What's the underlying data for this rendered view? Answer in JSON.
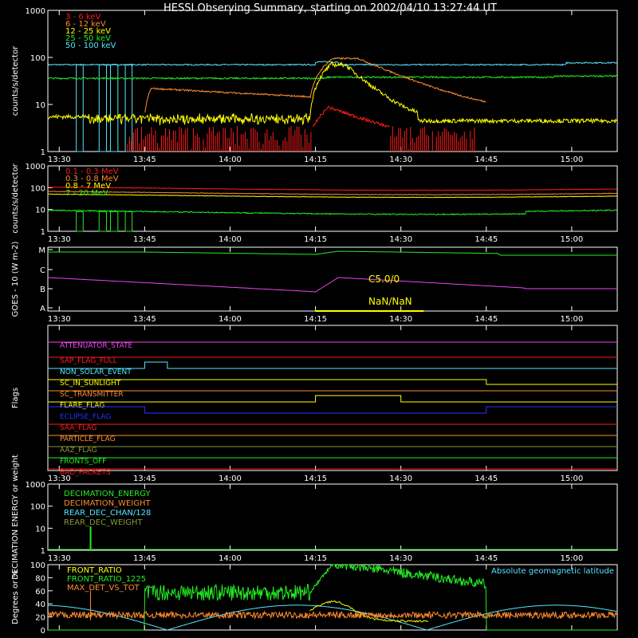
{
  "title": "HESSI Observing Summary, starting on 2002/04/10 13:27:44 UT",
  "time_axis": {
    "start_minutes": 1,
    "end_minutes": 101,
    "ticks": [
      {
        "t": 3,
        "label": "13:30"
      },
      {
        "t": 18,
        "label": "13:45"
      },
      {
        "t": 33,
        "label": "14:00"
      },
      {
        "t": 48,
        "label": "14:15"
      },
      {
        "t": 63,
        "label": "14:30"
      },
      {
        "t": 78,
        "label": "14:45"
      },
      {
        "t": 93,
        "label": "15:00"
      }
    ]
  },
  "colors": {
    "red": "#ff1a1a",
    "orange": "#ff8c30",
    "yellow": "#ffff00",
    "green": "#22ee22",
    "cyan": "#55e6ff",
    "magenta": "#ee44ee",
    "blue": "#2233ff",
    "olive": "#889933",
    "white": "#ffffff"
  },
  "chart_data": [
    {
      "type": "line",
      "ylabel": "counts/s/detector",
      "yscale": "log",
      "ylim": [
        1,
        1000
      ],
      "yticks": [
        "1",
        "10",
        "100",
        "1000"
      ],
      "series": [
        {
          "name": "3 - 6 keV",
          "color": "red"
        },
        {
          "name": "6 - 12 keV",
          "color": "orange"
        },
        {
          "name": "12 - 25 keV",
          "color": "yellow"
        },
        {
          "name": "25 - 50 keV",
          "color": "green"
        },
        {
          "name": "50 - 100 keV",
          "color": "cyan"
        }
      ]
    },
    {
      "type": "line",
      "ylabel": "counts/s/detector",
      "yscale": "log",
      "ylim": [
        1,
        1000
      ],
      "yticks": [
        "1",
        "10",
        "100",
        "1000"
      ],
      "series": [
        {
          "name": "0.1 - 0.3 MeV",
          "color": "red"
        },
        {
          "name": "0.3 - 0.8 MeV",
          "color": "orange"
        },
        {
          "name": "0.8 - 7 MeV",
          "color": "yellow"
        },
        {
          "name": "7 - 20 MeV",
          "color": "green"
        }
      ]
    },
    {
      "type": "line",
      "ylabel": "GOES - 10 (W m-2)",
      "yticks": [
        "A",
        "B",
        "C",
        "M"
      ],
      "annotations": [
        "C5.0/0",
        "NaN/NaN"
      ]
    },
    {
      "type": "line",
      "ylabel": "Flags",
      "flags": [
        {
          "name": "ATTENUATOR_STATE",
          "color": "magenta"
        },
        {
          "name": "SAP_FLAG_FULL",
          "color": "red"
        },
        {
          "name": "NON_SOLAR_EVENT",
          "color": "cyan"
        },
        {
          "name": "SC_IN_SUNLIGHT",
          "color": "yellow"
        },
        {
          "name": "SC_TRANSMITTER",
          "color": "orange"
        },
        {
          "name": "FLARE_FLAG",
          "color": "yellow"
        },
        {
          "name": "ECLIPSE_FLAG",
          "color": "blue"
        },
        {
          "name": "SAA_FLAG",
          "color": "red"
        },
        {
          "name": "PARTICLE_FLAG",
          "color": "orange"
        },
        {
          "name": "AAZ_FLAG",
          "color": "olive"
        },
        {
          "name": "FRONTS_OFF",
          "color": "green"
        },
        {
          "name": "BAD_PACKETS",
          "color": "red"
        }
      ]
    },
    {
      "type": "line",
      "ylabel": "DECIMATION ENERGY or weight",
      "yscale": "log",
      "ylim": [
        1,
        1000
      ],
      "yticks": [
        "1",
        "10",
        "100",
        "1000"
      ],
      "series": [
        {
          "name": "DECIMATION_ENERGY",
          "color": "green"
        },
        {
          "name": "DECIMATION_WEIGHT",
          "color": "orange"
        },
        {
          "name": "REAR_DEC_CHAN/128",
          "color": "cyan"
        },
        {
          "name": "REAR_DEC_WEIGHT",
          "color": "olive"
        }
      ]
    },
    {
      "type": "line",
      "ylabel": "Degrees or %",
      "ylim": [
        0,
        100
      ],
      "yticks": [
        "0",
        "20",
        "40",
        "60",
        "80",
        "100"
      ],
      "series": [
        {
          "name": "FRONT_RATIO",
          "color": "yellow"
        },
        {
          "name": "FRONT_RATIO_1225",
          "color": "green"
        },
        {
          "name": "MAX_DET_VS_TOT",
          "color": "orange"
        },
        {
          "name": "Absolute geomagnetic latitude",
          "color": "cyan"
        }
      ]
    }
  ]
}
